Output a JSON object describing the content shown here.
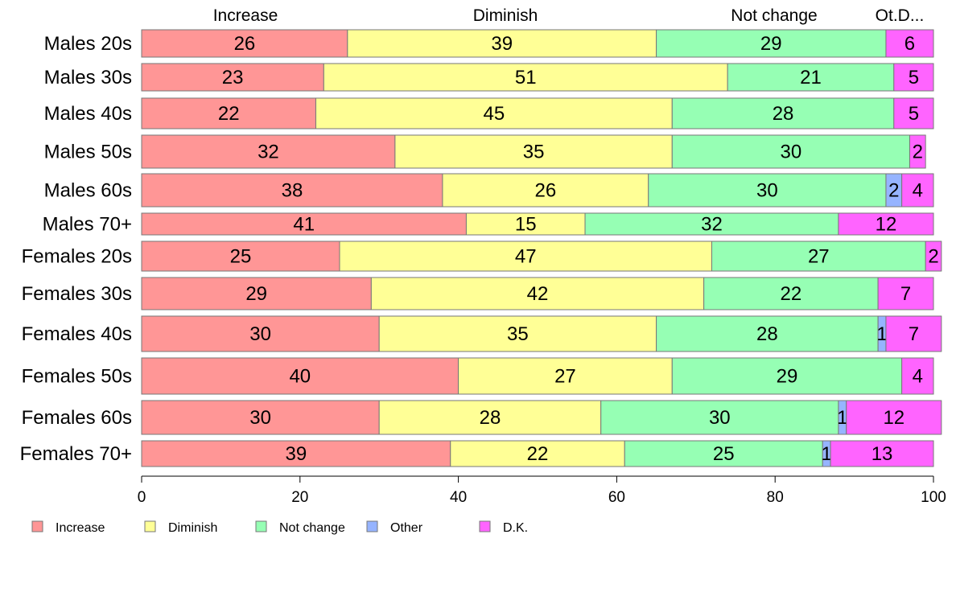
{
  "chart_data": {
    "type": "bar",
    "orientation": "horizontal",
    "stacked": true,
    "categories": [
      "Males 20s",
      "Males 30s",
      "Males 40s",
      "Males 50s",
      "Males 60s",
      "Males 70+",
      "Females 20s",
      "Females 30s",
      "Females 40s",
      "Females 50s",
      "Females 60s",
      "Females 70+"
    ],
    "series": [
      {
        "name": "Increase",
        "color": "#FF9696",
        "values": [
          26,
          23,
          22,
          32,
          38,
          41,
          25,
          29,
          30,
          40,
          30,
          39
        ]
      },
      {
        "name": "Diminish",
        "color": "#FFFF96",
        "values": [
          39,
          51,
          45,
          35,
          26,
          15,
          47,
          42,
          35,
          27,
          28,
          22
        ]
      },
      {
        "name": "Not change",
        "color": "#96FFB4",
        "values": [
          29,
          21,
          28,
          30,
          30,
          32,
          27,
          22,
          28,
          29,
          30,
          25
        ]
      },
      {
        "name": "Other",
        "color": "#96B4FF",
        "values": [
          0,
          0,
          0,
          0,
          2,
          0,
          0,
          0,
          1,
          0,
          1,
          1
        ]
      },
      {
        "name": "D.K.",
        "color": "#FF64FF",
        "values": [
          6,
          5,
          5,
          2,
          4,
          12,
          2,
          7,
          7,
          4,
          12,
          13
        ]
      }
    ],
    "top_labels": [
      "Increase",
      "Diminish",
      "Not change",
      "Ot.D..."
    ],
    "xlim": [
      0,
      100
    ],
    "x_ticks": [
      "0",
      "20",
      "40",
      "60",
      "80",
      "100"
    ],
    "legend": {
      "placement": "bottom-left",
      "entries": [
        "Increase",
        "Diminish",
        "Not change",
        "Other",
        "D.K."
      ]
    },
    "grid": false
  }
}
